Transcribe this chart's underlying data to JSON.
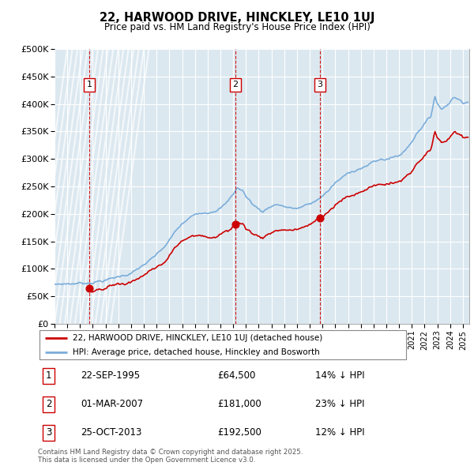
{
  "title1": "22, HARWOOD DRIVE, HINCKLEY, LE10 1UJ",
  "title2": "Price paid vs. HM Land Registry's House Price Index (HPI)",
  "ylabel_ticks": [
    "£0",
    "£50K",
    "£100K",
    "£150K",
    "£200K",
    "£250K",
    "£300K",
    "£350K",
    "£400K",
    "£450K",
    "£500K"
  ],
  "ylim": [
    0,
    500000
  ],
  "xlim_start": 1993.0,
  "xlim_end": 2025.5,
  "sale_dates": [
    1995.72,
    2007.16,
    2013.81
  ],
  "sale_prices": [
    64500,
    181000,
    192500
  ],
  "sale_labels": [
    "1",
    "2",
    "3"
  ],
  "vline_dates": [
    1995.72,
    2007.16,
    2013.81
  ],
  "legend_sale": "22, HARWOOD DRIVE, HINCKLEY, LE10 1UJ (detached house)",
  "legend_hpi": "HPI: Average price, detached house, Hinckley and Bosworth",
  "table_entries": [
    {
      "num": "1",
      "date": "22-SEP-1995",
      "price": "£64,500",
      "pct": "14% ↓ HPI"
    },
    {
      "num": "2",
      "date": "01-MAR-2007",
      "price": "£181,000",
      "pct": "23% ↓ HPI"
    },
    {
      "num": "3",
      "date": "25-OCT-2013",
      "price": "£192,500",
      "pct": "12% ↓ HPI"
    }
  ],
  "footnote": "Contains HM Land Registry data © Crown copyright and database right 2025.\nThis data is licensed under the Open Government Licence v3.0.",
  "sale_line_color": "#cc0000",
  "hpi_line_color": "#7aaddb",
  "vline_color": "#cc0000",
  "grid_color": "#c8d8e8",
  "bg_color": "#dce8f0",
  "hatch_color": "#c0ccd8"
}
